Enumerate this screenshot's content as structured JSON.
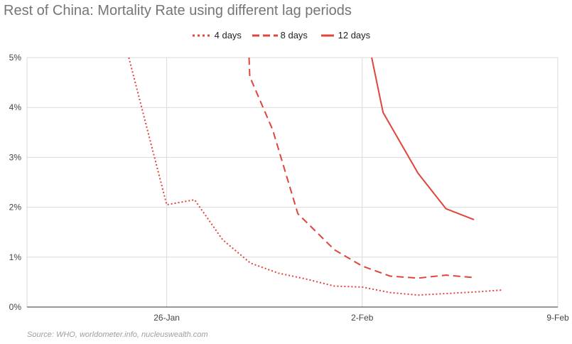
{
  "chart_data": {
    "type": "line",
    "title": "Rest of China: Mortality Rate using different lag periods",
    "source": "Source: WHO, worldometer.info, nucleuswealth.com",
    "x_ticks": [
      "26-Jan",
      "2-Feb",
      "9-Feb"
    ],
    "y_ticks": [
      "0%",
      "1%",
      "2%",
      "3%",
      "4%",
      "5%"
    ],
    "ylim": [
      0,
      5
    ],
    "xlim": [
      "2020-01-21",
      "2020-02-09"
    ],
    "grid": true,
    "legend_position": "top",
    "series": [
      {
        "name": "4 days",
        "style": "dotted",
        "color": "#e0443a",
        "points": [
          {
            "x": "2020-01-25",
            "y": 5.0
          },
          {
            "x": "2020-01-26",
            "y": 2.05
          },
          {
            "x": "2020-01-27",
            "y": 2.15
          },
          {
            "x": "2020-01-28",
            "y": 1.35
          },
          {
            "x": "2020-01-29",
            "y": 0.88
          },
          {
            "x": "2020-01-30",
            "y": 0.68
          },
          {
            "x": "2020-01-31",
            "y": 0.56
          },
          {
            "x": "2020-02-01",
            "y": 0.42
          },
          {
            "x": "2020-02-02",
            "y": 0.4
          },
          {
            "x": "2020-02-03",
            "y": 0.29
          },
          {
            "x": "2020-02-04",
            "y": 0.24
          },
          {
            "x": "2020-02-05",
            "y": 0.27
          },
          {
            "x": "2020-02-06",
            "y": 0.3
          },
          {
            "x": "2020-02-07",
            "y": 0.34
          }
        ]
      },
      {
        "name": "8 days",
        "style": "dashed",
        "color": "#e0443a",
        "points": [
          {
            "x": "2020-01-29",
            "y": 5.0
          },
          {
            "x": "2020-01-29",
            "y": 4.62
          },
          {
            "x": "2020-01-30",
            "y": 3.55
          },
          {
            "x": "2020-01-31",
            "y": 1.87
          },
          {
            "x": "2020-02-01",
            "y": 1.15
          },
          {
            "x": "2020-02-02",
            "y": 0.82
          },
          {
            "x": "2020-02-03",
            "y": 0.62
          },
          {
            "x": "2020-02-04",
            "y": 0.58
          },
          {
            "x": "2020-02-05",
            "y": 0.64
          },
          {
            "x": "2020-02-06",
            "y": 0.59
          }
        ]
      },
      {
        "name": "12 days",
        "style": "solid",
        "color": "#e0443a",
        "points": [
          {
            "x": "2020-02-03",
            "y": 5.0
          },
          {
            "x": "2020-02-03",
            "y": 3.9
          },
          {
            "x": "2020-02-04",
            "y": 2.68
          },
          {
            "x": "2020-02-05",
            "y": 1.97
          },
          {
            "x": "2020-02-06",
            "y": 1.75
          }
        ]
      }
    ]
  }
}
